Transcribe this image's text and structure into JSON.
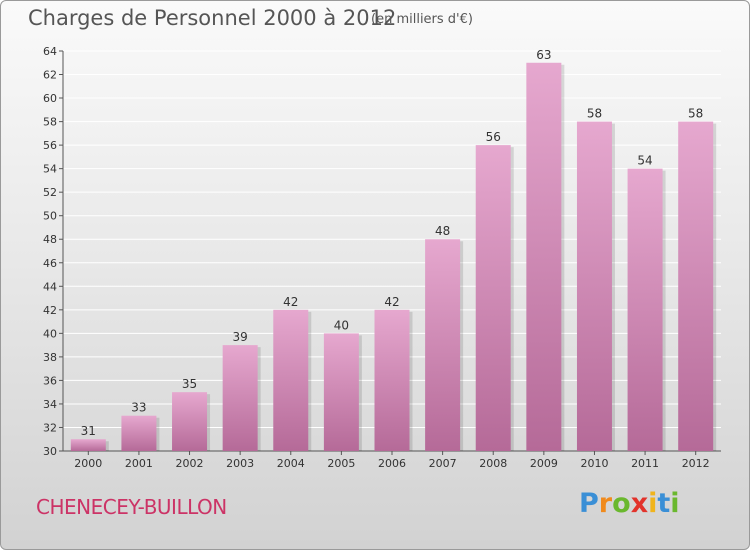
{
  "title": "Charges de Personnel 2000 à 2012",
  "subtitle": "(en milliers d'€)",
  "commune": "CHENECEY-BUILLON",
  "logo": {
    "letters": [
      "P",
      "r",
      "o",
      "x",
      "i",
      "t",
      "i"
    ],
    "colors": [
      "#3a8fd6",
      "#f08a1c",
      "#6ab82e",
      "#e2332b",
      "#f0b41c",
      "#3a8fd6",
      "#6ab82e"
    ]
  },
  "colors": {
    "bar_top": "#e6a8cf",
    "bar_bottom": "#b56a98",
    "axis": "#555555",
    "grid": "#ffffff"
  },
  "chart_data": {
    "type": "bar",
    "categories": [
      "2000",
      "2001",
      "2002",
      "2003",
      "2004",
      "2005",
      "2006",
      "2007",
      "2008",
      "2009",
      "2010",
      "2011",
      "2012"
    ],
    "values": [
      31,
      33,
      35,
      39,
      42,
      40,
      42,
      48,
      56,
      63,
      58,
      54,
      58
    ],
    "title": "Charges de Personnel 2000 à 2012",
    "xlabel": "",
    "ylabel": "",
    "ylim": [
      30,
      64
    ],
    "yticks": [
      30,
      32,
      34,
      36,
      38,
      40,
      42,
      44,
      46,
      48,
      50,
      52,
      54,
      56,
      58,
      60,
      62,
      64
    ],
    "grid": true,
    "data_labels": true
  }
}
